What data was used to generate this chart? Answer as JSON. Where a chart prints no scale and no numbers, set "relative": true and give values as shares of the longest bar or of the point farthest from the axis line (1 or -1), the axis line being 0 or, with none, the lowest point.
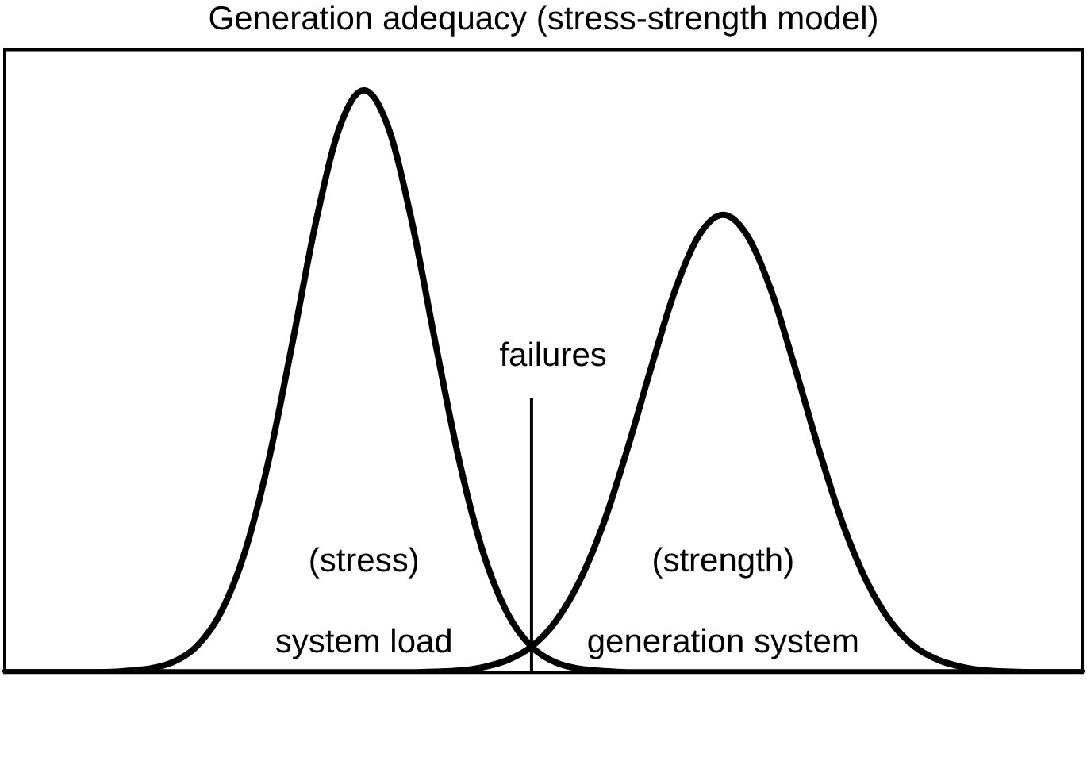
{
  "chart_data": {
    "type": "line",
    "title": "Generation adequacy (stress-strength model)",
    "relative": true,
    "legend": false,
    "marker": "none",
    "line_style": "solid",
    "categories": [
      null,
      null,
      null,
      null,
      null,
      null,
      null,
      null,
      null,
      null,
      null,
      null,
      null,
      null,
      null,
      null,
      null,
      null,
      null,
      null,
      null,
      null,
      null,
      null,
      null,
      null,
      null,
      null,
      null,
      null,
      null,
      null,
      null,
      null,
      null,
      null,
      null,
      null,
      null,
      null,
      null,
      null,
      null,
      null,
      null,
      null
    ],
    "series": [
      {
        "color": "#000000",
        "values": [
          0,
          0,
          0,
          0,
          0,
          0.002,
          0.006,
          0.017,
          0.044,
          0.101,
          0.203,
          0.36,
          0.563,
          0.775,
          0.938,
          1,
          0.938,
          0.775,
          0.563,
          0.36,
          0.203,
          0.101,
          0.044,
          0.017,
          0.006,
          0.002,
          0,
          0,
          0,
          0,
          0,
          0,
          0,
          0,
          0,
          0,
          0,
          0,
          0,
          0,
          0,
          0,
          0,
          0,
          0,
          0
        ]
      },
      {
        "color": "#000000",
        "values": [
          0,
          0,
          0,
          0,
          0,
          0,
          0,
          0,
          0,
          0,
          0,
          0,
          0,
          0,
          0,
          0,
          0,
          0,
          0.001,
          0.003,
          0.009,
          0.021,
          0.044,
          0.087,
          0.156,
          0.255,
          0.383,
          0.524,
          0.657,
          0.751,
          0.786,
          0.751,
          0.657,
          0.524,
          0.383,
          0.255,
          0.156,
          0.087,
          0.044,
          0.021,
          0.009,
          0.003,
          0.001,
          0,
          0,
          0
        ]
      }
    ],
    "annotations": [
      "(stress)",
      "system load",
      "(strength)",
      "generation system",
      "failures"
    ]
  }
}
